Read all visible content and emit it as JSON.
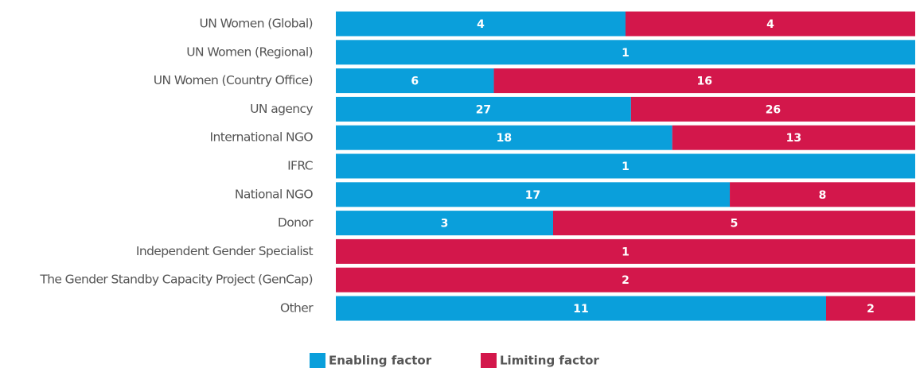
{
  "chart_data": {
    "type": "stacked_bar_100",
    "categories": [
      "UN Women (Global)",
      "UN Women (Regional)",
      "UN Women (Country Office)",
      "UN agency",
      "International NGO",
      "IFRC",
      "National NGO",
      "Donor",
      "Independent Gender Specialist",
      "The Gender Standby Capacity Project (GenCap)",
      "Other"
    ],
    "series": [
      {
        "name": "Enabling factor",
        "color": "#0a9fdb",
        "values": [
          4,
          1,
          6,
          27,
          18,
          1,
          17,
          3,
          null,
          null,
          11
        ]
      },
      {
        "name": "Limiting factor",
        "color": "#d3174b",
        "values": [
          4,
          null,
          16,
          26,
          13,
          null,
          8,
          5,
          1,
          2,
          2
        ]
      }
    ]
  }
}
